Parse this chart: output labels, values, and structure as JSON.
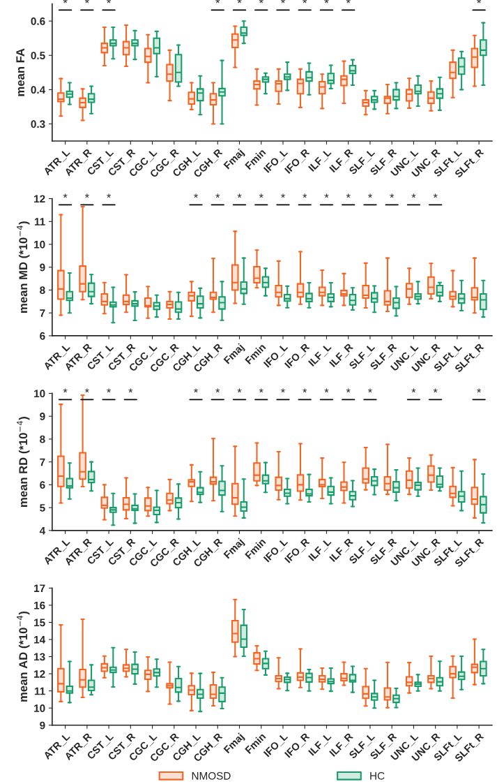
{
  "chart_data": [
    {
      "type": "box",
      "ylabel": "mean FA",
      "categories": [
        "ATR_L",
        "ATR_R",
        "CST_L",
        "CST_R",
        "CGC_L",
        "CGC_R",
        "CGH_L",
        "CGH_R",
        "Fmaj",
        "Fmin",
        "IFO_L",
        "IFO_R",
        "ILF_L",
        "ILF_R",
        "SLF_L",
        "SLF_R",
        "UNC_L",
        "UNC_R",
        "SLFt_L",
        "SLFt_R"
      ],
      "ylim": [
        0.25,
        0.65
      ],
      "yticks": [
        0.3,
        0.4,
        0.5,
        0.6
      ],
      "series": [
        {
          "color": "#f26522",
          "boxes": [
            {
              "low": 0.323,
              "q1": 0.365,
              "median": 0.372,
              "q3": 0.39,
              "high": 0.432
            },
            {
              "low": 0.31,
              "q1": 0.348,
              "median": 0.362,
              "q3": 0.375,
              "high": 0.402
            },
            {
              "low": 0.47,
              "q1": 0.508,
              "median": 0.522,
              "q3": 0.535,
              "high": 0.582
            },
            {
              "low": 0.468,
              "q1": 0.502,
              "median": 0.522,
              "q3": 0.54,
              "high": 0.588
            },
            {
              "low": 0.42,
              "q1": 0.48,
              "median": 0.497,
              "q3": 0.52,
              "high": 0.56
            },
            {
              "low": 0.368,
              "q1": 0.425,
              "median": 0.445,
              "q3": 0.473,
              "high": 0.515
            },
            {
              "low": 0.342,
              "q1": 0.358,
              "median": 0.373,
              "q3": 0.392,
              "high": 0.42
            },
            {
              "low": 0.3,
              "q1": 0.356,
              "median": 0.37,
              "q3": 0.388,
              "high": 0.42
            },
            {
              "low": 0.465,
              "q1": 0.523,
              "median": 0.545,
              "q3": 0.562,
              "high": 0.585
            },
            {
              "low": 0.355,
              "q1": 0.402,
              "median": 0.415,
              "q3": 0.425,
              "high": 0.46
            },
            {
              "low": 0.358,
              "q1": 0.395,
              "median": 0.417,
              "q3": 0.425,
              "high": 0.46
            },
            {
              "low": 0.348,
              "q1": 0.388,
              "median": 0.418,
              "q3": 0.43,
              "high": 0.46
            },
            {
              "low": 0.345,
              "q1": 0.388,
              "median": 0.408,
              "q3": 0.423,
              "high": 0.445
            },
            {
              "low": 0.36,
              "q1": 0.412,
              "median": 0.43,
              "q3": 0.44,
              "high": 0.483
            },
            {
              "low": 0.327,
              "q1": 0.352,
              "median": 0.362,
              "q3": 0.37,
              "high": 0.397
            },
            {
              "low": 0.33,
              "q1": 0.36,
              "median": 0.375,
              "q3": 0.38,
              "high": 0.415
            },
            {
              "low": 0.346,
              "q1": 0.367,
              "median": 0.387,
              "q3": 0.4,
              "high": 0.433
            },
            {
              "low": 0.338,
              "q1": 0.36,
              "median": 0.375,
              "q3": 0.393,
              "high": 0.425
            },
            {
              "low": 0.377,
              "q1": 0.433,
              "median": 0.45,
              "q3": 0.48,
              "high": 0.515
            },
            {
              "low": 0.41,
              "q1": 0.465,
              "median": 0.495,
              "q3": 0.52,
              "high": 0.558
            }
          ]
        },
        {
          "color": "#179c6b",
          "boxes": [
            {
              "low": 0.357,
              "q1": 0.378,
              "median": 0.387,
              "q3": 0.395,
              "high": 0.42
            },
            {
              "low": 0.33,
              "q1": 0.363,
              "median": 0.372,
              "q3": 0.388,
              "high": 0.41
            },
            {
              "low": 0.49,
              "q1": 0.528,
              "median": 0.535,
              "q3": 0.545,
              "high": 0.582
            },
            {
              "low": 0.488,
              "q1": 0.528,
              "median": 0.535,
              "q3": 0.545,
              "high": 0.572
            },
            {
              "low": 0.438,
              "q1": 0.505,
              "median": 0.522,
              "q3": 0.55,
              "high": 0.57
            },
            {
              "low": 0.41,
              "q1": 0.422,
              "median": 0.45,
              "q3": 0.502,
              "high": 0.53
            },
            {
              "low": 0.327,
              "q1": 0.368,
              "median": 0.39,
              "q3": 0.402,
              "high": 0.44
            },
            {
              "low": 0.3,
              "q1": 0.382,
              "median": 0.393,
              "q3": 0.403,
              "high": 0.485
            },
            {
              "low": 0.535,
              "q1": 0.558,
              "median": 0.565,
              "q3": 0.582,
              "high": 0.6
            },
            {
              "low": 0.388,
              "q1": 0.422,
              "median": 0.43,
              "q3": 0.437,
              "high": 0.448
            },
            {
              "low": 0.398,
              "q1": 0.43,
              "median": 0.437,
              "q3": 0.445,
              "high": 0.48
            },
            {
              "low": 0.385,
              "q1": 0.425,
              "median": 0.435,
              "q3": 0.452,
              "high": 0.477
            },
            {
              "low": 0.403,
              "q1": 0.418,
              "median": 0.427,
              "q3": 0.447,
              "high": 0.471
            },
            {
              "low": 0.413,
              "q1": 0.447,
              "median": 0.455,
              "q3": 0.47,
              "high": 0.487
            },
            {
              "low": 0.343,
              "q1": 0.363,
              "median": 0.37,
              "q3": 0.38,
              "high": 0.397
            },
            {
              "low": 0.345,
              "q1": 0.37,
              "median": 0.38,
              "q3": 0.4,
              "high": 0.42
            },
            {
              "low": 0.352,
              "q1": 0.388,
              "median": 0.395,
              "q3": 0.413,
              "high": 0.44
            },
            {
              "low": 0.34,
              "q1": 0.375,
              "median": 0.388,
              "q3": 0.402,
              "high": 0.436
            },
            {
              "low": 0.4,
              "q1": 0.445,
              "median": 0.467,
              "q3": 0.492,
              "high": 0.511
            },
            {
              "low": 0.413,
              "q1": 0.5,
              "median": 0.515,
              "q3": 0.545,
              "high": 0.595
            }
          ]
        }
      ],
      "annotations": [
        "*",
        "*",
        "*",
        null,
        null,
        null,
        null,
        "*",
        "*",
        "*",
        "*",
        "*",
        "*",
        "*",
        null,
        null,
        null,
        null,
        null,
        "*"
      ]
    },
    {
      "type": "box",
      "ylabel": "mean MD (*10$^{−4}$)",
      "categories": [
        "ATR_L",
        "ATR_R",
        "CST_L",
        "CST_R",
        "CGC_L",
        "CGC_R",
        "CGH_L",
        "CGH_R",
        "Fmaj",
        "Fmin",
        "IFO_L",
        "IFO_R",
        "ILF_L",
        "ILF_R",
        "SLF_L",
        "SLF_R",
        "UNC_L",
        "UNC_R",
        "SLFt_L",
        "SLFt_R"
      ],
      "ylim": [
        6,
        12
      ],
      "yticks": [
        6,
        7,
        8,
        9,
        10,
        11,
        12
      ],
      "series": [
        {
          "color": "#f26522",
          "boxes": [
            {
              "low": 6.9,
              "q1": 7.6,
              "median": 8.05,
              "q3": 8.85,
              "high": 11.3
            },
            {
              "low": 7.58,
              "q1": 7.93,
              "median": 8.27,
              "q3": 9.05,
              "high": 11.65
            },
            {
              "low": 6.97,
              "q1": 7.35,
              "median": 7.5,
              "q3": 7.83,
              "high": 8.33
            },
            {
              "low": 7.03,
              "q1": 7.37,
              "median": 7.5,
              "q3": 7.78,
              "high": 8.67
            },
            {
              "low": 6.77,
              "q1": 7.27,
              "median": 7.32,
              "q3": 7.65,
              "high": 8.15
            },
            {
              "low": 6.73,
              "q1": 7.22,
              "median": 7.37,
              "q3": 7.5,
              "high": 7.93
            },
            {
              "low": 6.85,
              "q1": 7.53,
              "median": 7.75,
              "q3": 7.9,
              "high": 8.37
            },
            {
              "low": 7.03,
              "q1": 7.6,
              "median": 7.68,
              "q3": 7.9,
              "high": 9.38
            },
            {
              "low": 7.42,
              "q1": 8.0,
              "median": 8.33,
              "q3": 9.1,
              "high": 10.57
            },
            {
              "low": 8.1,
              "q1": 8.32,
              "median": 8.52,
              "q3": 9.02,
              "high": 9.75
            },
            {
              "low": 7.33,
              "q1": 7.7,
              "median": 7.9,
              "q3": 8.2,
              "high": 9.27
            },
            {
              "low": 7.38,
              "q1": 7.7,
              "median": 7.9,
              "q3": 8.27,
              "high": 9.68
            },
            {
              "low": 7.33,
              "q1": 7.75,
              "median": 7.9,
              "q3": 8.12,
              "high": 8.87
            },
            {
              "low": 7.33,
              "q1": 7.75,
              "median": 7.83,
              "q3": 7.98,
              "high": 8.72
            },
            {
              "low": 7.22,
              "q1": 7.65,
              "median": 7.77,
              "q3": 8.2,
              "high": 9.18
            },
            {
              "low": 7.07,
              "q1": 7.35,
              "median": 7.5,
              "q3": 7.97,
              "high": 9.4
            },
            {
              "low": 7.38,
              "q1": 7.68,
              "median": 8.05,
              "q3": 8.28,
              "high": 8.95
            },
            {
              "low": 7.62,
              "q1": 7.83,
              "median": 8.12,
              "q3": 8.57,
              "high": 9.17
            },
            {
              "low": 7.27,
              "q1": 7.6,
              "median": 7.72,
              "q3": 7.93,
              "high": 8.85
            },
            {
              "low": 7.0,
              "q1": 7.57,
              "median": 7.68,
              "q3": 8.1,
              "high": 9.4
            }
          ]
        },
        {
          "color": "#179c6b",
          "boxes": [
            {
              "low": 7.0,
              "q1": 7.55,
              "median": 7.65,
              "q3": 7.93,
              "high": 8.75
            },
            {
              "low": 7.4,
              "q1": 7.72,
              "median": 7.93,
              "q3": 8.3,
              "high": 8.68
            },
            {
              "low": 6.57,
              "q1": 7.27,
              "median": 7.35,
              "q3": 7.47,
              "high": 8.12
            },
            {
              "low": 6.67,
              "q1": 7.3,
              "median": 7.4,
              "q3": 7.53,
              "high": 7.92
            },
            {
              "low": 6.82,
              "q1": 7.15,
              "median": 7.3,
              "q3": 7.45,
              "high": 7.78
            },
            {
              "low": 6.73,
              "q1": 7.03,
              "median": 7.17,
              "q3": 7.48,
              "high": 7.9
            },
            {
              "low": 6.78,
              "q1": 7.22,
              "median": 7.4,
              "q3": 7.73,
              "high": 8.08
            },
            {
              "low": 6.68,
              "q1": 7.17,
              "median": 7.45,
              "q3": 7.7,
              "high": 8.37
            },
            {
              "low": 7.38,
              "q1": 7.85,
              "median": 8.05,
              "q3": 8.35,
              "high": 9.4
            },
            {
              "low": 7.75,
              "q1": 8.12,
              "median": 8.33,
              "q3": 8.58,
              "high": 8.95
            },
            {
              "low": 7.23,
              "q1": 7.52,
              "median": 7.62,
              "q3": 7.8,
              "high": 8.17
            },
            {
              "low": 7.23,
              "q1": 7.5,
              "median": 7.62,
              "q3": 7.85,
              "high": 8.32
            },
            {
              "low": 7.27,
              "q1": 7.5,
              "median": 7.68,
              "q3": 7.83,
              "high": 8.32
            },
            {
              "low": 7.13,
              "q1": 7.35,
              "median": 7.55,
              "q3": 7.8,
              "high": 8.1
            },
            {
              "low": 7.03,
              "q1": 7.47,
              "median": 7.63,
              "q3": 7.88,
              "high": 8.18
            },
            {
              "low": 6.87,
              "q1": 7.2,
              "median": 7.45,
              "q3": 7.65,
              "high": 8.15
            },
            {
              "low": 7.4,
              "q1": 7.6,
              "median": 7.72,
              "q3": 7.83,
              "high": 8.37
            },
            {
              "low": 7.5,
              "q1": 7.75,
              "median": 7.9,
              "q3": 8.2,
              "high": 8.33
            },
            {
              "low": 7.1,
              "q1": 7.43,
              "median": 7.63,
              "q3": 7.83,
              "high": 8.42
            },
            {
              "low": 6.82,
              "q1": 7.15,
              "median": 7.57,
              "q3": 7.83,
              "high": 8.42
            }
          ]
        }
      ],
      "annotations": [
        "*",
        "*",
        "*",
        null,
        null,
        null,
        "*",
        "*",
        "*",
        "*",
        "*",
        "*",
        "*",
        "*",
        "*",
        "*",
        "*",
        "*",
        null,
        null
      ]
    },
    {
      "type": "box",
      "ylabel": "mean RD (*10$^{−4}$)",
      "categories": [
        "ATR_L",
        "ATR_R",
        "CST_L",
        "CST_R",
        "CGC_L",
        "CGC_R",
        "CGH_L",
        "CGH_R",
        "Fmaj",
        "Fmin",
        "IFO_L",
        "IFO_R",
        "ILF_L",
        "ILF_R",
        "SLF_L",
        "SLF_R",
        "UNC_L",
        "UNC_R",
        "SLFt_L",
        "SLFt_R"
      ],
      "ylim": [
        4,
        10
      ],
      "yticks": [
        4,
        5,
        6,
        7,
        8,
        9,
        10
      ],
      "series": [
        {
          "color": "#f26522",
          "boxes": [
            {
              "low": 5.2,
              "q1": 5.93,
              "median": 6.38,
              "q3": 7.25,
              "high": 9.52
            },
            {
              "low": 5.92,
              "q1": 6.25,
              "median": 6.57,
              "q3": 7.4,
              "high": 9.92
            },
            {
              "low": 4.47,
              "q1": 4.98,
              "median": 5.1,
              "q3": 5.45,
              "high": 6.0
            },
            {
              "low": 4.52,
              "q1": 4.9,
              "median": 5.15,
              "q3": 5.43,
              "high": 6.3
            },
            {
              "low": 4.63,
              "q1": 4.87,
              "median": 5.07,
              "q3": 5.42,
              "high": 5.88
            },
            {
              "low": 4.87,
              "q1": 5.17,
              "median": 5.33,
              "q3": 5.62,
              "high": 6.23
            },
            {
              "low": 5.27,
              "q1": 5.93,
              "median": 6.13,
              "q3": 6.22,
              "high": 6.87
            },
            {
              "low": 5.3,
              "q1": 6.03,
              "median": 6.13,
              "q3": 6.33,
              "high": 8.02
            },
            {
              "low": 4.63,
              "q1": 5.15,
              "median": 5.43,
              "q3": 6.05,
              "high": 7.68
            },
            {
              "low": 5.97,
              "q1": 6.17,
              "median": 6.42,
              "q3": 6.95,
              "high": 7.83
            },
            {
              "low": 5.35,
              "q1": 5.77,
              "median": 5.97,
              "q3": 6.33,
              "high": 7.45
            },
            {
              "low": 5.33,
              "q1": 5.72,
              "median": 6.0,
              "q3": 6.43,
              "high": 7.8
            },
            {
              "low": 5.4,
              "q1": 5.92,
              "median": 6.0,
              "q3": 6.23,
              "high": 7.17
            },
            {
              "low": 5.2,
              "q1": 5.75,
              "median": 5.9,
              "q3": 6.12,
              "high": 6.98
            },
            {
              "low": 5.78,
              "q1": 6.08,
              "median": 6.25,
              "q3": 6.73,
              "high": 7.63
            },
            {
              "low": 5.58,
              "q1": 5.77,
              "median": 6.05,
              "q3": 6.35,
              "high": 7.77
            },
            {
              "low": 5.58,
              "q1": 5.85,
              "median": 6.2,
              "q3": 6.6,
              "high": 7.17
            },
            {
              "low": 5.77,
              "q1": 6.12,
              "median": 6.42,
              "q3": 6.82,
              "high": 7.3
            },
            {
              "low": 5.08,
              "q1": 5.45,
              "median": 5.62,
              "q3": 5.93,
              "high": 6.75
            },
            {
              "low": 4.55,
              "q1": 5.15,
              "median": 5.37,
              "q3": 5.88,
              "high": 7.1
            }
          ]
        },
        {
          "color": "#179c6b",
          "boxes": [
            {
              "low": 5.38,
              "q1": 5.87,
              "median": 5.95,
              "q3": 6.27,
              "high": 6.95
            },
            {
              "low": 5.73,
              "q1": 6.1,
              "median": 6.23,
              "q3": 6.58,
              "high": 7.0
            },
            {
              "low": 4.23,
              "q1": 4.8,
              "median": 4.9,
              "q3": 5.0,
              "high": 5.62
            },
            {
              "low": 4.32,
              "q1": 4.88,
              "median": 4.95,
              "q3": 5.1,
              "high": 5.6
            },
            {
              "low": 4.35,
              "q1": 4.7,
              "median": 4.88,
              "q3": 5.02,
              "high": 5.75
            },
            {
              "low": 4.5,
              "q1": 5.0,
              "median": 5.22,
              "q3": 5.42,
              "high": 6.03
            },
            {
              "low": 5.23,
              "q1": 5.58,
              "median": 5.67,
              "q3": 5.87,
              "high": 6.57
            },
            {
              "low": 4.83,
              "q1": 5.55,
              "median": 5.75,
              "q3": 6.15,
              "high": 6.83
            },
            {
              "low": 4.55,
              "q1": 4.85,
              "median": 5.02,
              "q3": 5.25,
              "high": 6.25
            },
            {
              "low": 5.67,
              "q1": 6.05,
              "median": 6.17,
              "q3": 6.42,
              "high": 6.97
            },
            {
              "low": 5.17,
              "q1": 5.5,
              "median": 5.63,
              "q3": 5.8,
              "high": 6.27
            },
            {
              "low": 5.25,
              "q1": 5.52,
              "median": 5.6,
              "q3": 5.8,
              "high": 6.45
            },
            {
              "low": 5.17,
              "q1": 5.55,
              "median": 5.68,
              "q3": 5.93,
              "high": 6.3
            },
            {
              "low": 5.05,
              "q1": 5.35,
              "median": 5.52,
              "q3": 5.7,
              "high": 6.18
            },
            {
              "low": 5.57,
              "q1": 5.97,
              "median": 6.17,
              "q3": 6.35,
              "high": 6.68
            },
            {
              "low": 5.3,
              "q1": 5.68,
              "median": 5.87,
              "q3": 6.13,
              "high": 6.65
            },
            {
              "low": 5.5,
              "q1": 5.78,
              "median": 5.98,
              "q3": 6.1,
              "high": 6.73
            },
            {
              "low": 5.73,
              "q1": 5.9,
              "median": 6.02,
              "q3": 6.38,
              "high": 6.73
            },
            {
              "low": 4.87,
              "q1": 5.25,
              "median": 5.5,
              "q3": 5.7,
              "high": 6.6
            },
            {
              "low": 4.33,
              "q1": 4.77,
              "median": 5.13,
              "q3": 5.48,
              "high": 6.47
            }
          ]
        }
      ],
      "annotations": [
        "*",
        "*",
        "*",
        "*",
        null,
        null,
        "*",
        "*",
        "*",
        "*",
        "*",
        "*",
        "*",
        "*",
        "*",
        null,
        "*",
        "*",
        null,
        "*"
      ]
    },
    {
      "type": "box",
      "ylabel": "mean AD (*10$^{−4}$)",
      "categories": [
        "ATR_L",
        "ATR_R",
        "CST_L",
        "CST_R",
        "CGC_L",
        "CGC_R",
        "CGH_L",
        "CGH_R",
        "Fmaj",
        "Fmin",
        "IFO_L",
        "IFO_R",
        "ILF_L",
        "ILF_R",
        "SLF_L",
        "SLF_R",
        "UNC_L",
        "UNC_R",
        "SLFt_L",
        "SLFt_R"
      ],
      "ylim": [
        9,
        17
      ],
      "yticks": [
        9,
        10,
        11,
        12,
        13,
        14,
        15,
        16,
        17
      ],
      "legend": "bottom",
      "series": [
        {
          "name": "NMOSD",
          "color": "#f26522",
          "boxes": [
            {
              "low": 10.38,
              "q1": 10.95,
              "median": 11.42,
              "q3": 12.3,
              "high": 14.85
            },
            {
              "low": 10.62,
              "q1": 11.22,
              "median": 11.65,
              "q3": 12.25,
              "high": 15.18
            },
            {
              "low": 11.77,
              "q1": 12.15,
              "median": 12.35,
              "q3": 12.58,
              "high": 13.03
            },
            {
              "low": 11.82,
              "q1": 12.15,
              "median": 12.32,
              "q3": 12.52,
              "high": 13.42
            },
            {
              "low": 10.97,
              "q1": 11.68,
              "median": 11.97,
              "q3": 12.2,
              "high": 12.98
            },
            {
              "low": 10.23,
              "q1": 11.18,
              "median": 11.3,
              "q3": 11.42,
              "high": 12.68
            },
            {
              "low": 9.85,
              "q1": 10.78,
              "median": 11.05,
              "q3": 11.3,
              "high": 12.03
            },
            {
              "low": 10.13,
              "q1": 10.58,
              "median": 10.8,
              "q3": 11.35,
              "high": 12.08
            },
            {
              "low": 13.0,
              "q1": 13.85,
              "median": 14.35,
              "q3": 15.1,
              "high": 16.33
            },
            {
              "low": 12.2,
              "q1": 12.57,
              "median": 12.88,
              "q3": 13.22,
              "high": 13.63
            },
            {
              "low": 11.13,
              "q1": 11.55,
              "median": 11.72,
              "q3": 11.88,
              "high": 12.93
            },
            {
              "low": 11.2,
              "q1": 11.62,
              "median": 11.8,
              "q3": 12.05,
              "high": 13.45
            },
            {
              "low": 11.1,
              "q1": 11.53,
              "median": 11.68,
              "q3": 11.88,
              "high": 12.33
            },
            {
              "low": 11.33,
              "q1": 11.6,
              "median": 11.73,
              "q3": 12.0,
              "high": 12.68
            },
            {
              "low": 10.12,
              "q1": 10.57,
              "median": 10.83,
              "q3": 11.25,
              "high": 12.3
            },
            {
              "low": 10.02,
              "q1": 10.48,
              "median": 10.65,
              "q3": 11.17,
              "high": 12.67
            },
            {
              "low": 10.88,
              "q1": 11.3,
              "median": 11.5,
              "q3": 11.82,
              "high": 12.65
            },
            {
              "low": 11.13,
              "q1": 11.5,
              "median": 11.72,
              "q3": 11.88,
              "high": 13.02
            },
            {
              "low": 10.58,
              "q1": 11.78,
              "median": 12.0,
              "q3": 12.42,
              "high": 13.03
            },
            {
              "low": 11.37,
              "q1": 12.07,
              "median": 12.38,
              "q3": 12.55,
              "high": 14.02
            }
          ]
        },
        {
          "name": "HC",
          "color": "#179c6b",
          "boxes": [
            {
              "low": 10.32,
              "q1": 10.88,
              "median": 11.0,
              "q3": 11.27,
              "high": 12.72
            },
            {
              "low": 10.77,
              "q1": 11.03,
              "median": 11.22,
              "q3": 11.62,
              "high": 12.52
            },
            {
              "low": 11.23,
              "q1": 12.08,
              "median": 12.22,
              "q3": 12.38,
              "high": 13.52
            },
            {
              "low": 11.4,
              "q1": 12.0,
              "median": 12.27,
              "q3": 12.55,
              "high": 13.27
            },
            {
              "low": 11.22,
              "q1": 11.87,
              "median": 12.07,
              "q3": 12.28,
              "high": 12.85
            },
            {
              "low": 10.4,
              "q1": 10.93,
              "median": 11.2,
              "q3": 11.72,
              "high": 12.42
            },
            {
              "low": 9.8,
              "q1": 10.58,
              "median": 10.8,
              "q3": 11.08,
              "high": 12.02
            },
            {
              "low": 9.97,
              "q1": 10.38,
              "median": 10.87,
              "q3": 11.22,
              "high": 11.77
            },
            {
              "low": 13.02,
              "q1": 13.55,
              "median": 14.02,
              "q3": 14.83,
              "high": 15.75
            },
            {
              "low": 11.93,
              "q1": 12.3,
              "median": 12.6,
              "q3": 12.88,
              "high": 13.32
            },
            {
              "low": 11.02,
              "q1": 11.5,
              "median": 11.67,
              "q3": 11.8,
              "high": 12.03
            },
            {
              "low": 11.0,
              "q1": 11.52,
              "median": 11.78,
              "q3": 12.02,
              "high": 12.25
            },
            {
              "low": 10.98,
              "q1": 11.43,
              "median": 11.55,
              "q3": 11.7,
              "high": 12.33
            },
            {
              "low": 10.92,
              "q1": 11.53,
              "median": 11.62,
              "q3": 11.95,
              "high": 12.43
            },
            {
              "low": 10.0,
              "q1": 10.47,
              "median": 10.65,
              "q3": 10.85,
              "high": 11.62
            },
            {
              "low": 10.03,
              "q1": 10.33,
              "median": 10.55,
              "q3": 10.75,
              "high": 11.15
            },
            {
              "low": 11.0,
              "q1": 11.27,
              "median": 11.4,
              "q3": 11.5,
              "high": 11.95
            },
            {
              "low": 11.0,
              "q1": 11.3,
              "median": 11.53,
              "q3": 11.77,
              "high": 12.73
            },
            {
              "low": 11.08,
              "q1": 11.67,
              "median": 11.85,
              "q3": 12.1,
              "high": 13.02
            },
            {
              "low": 11.42,
              "q1": 11.88,
              "median": 12.3,
              "q3": 12.72,
              "high": 13.42
            }
          ]
        }
      ]
    }
  ]
}
